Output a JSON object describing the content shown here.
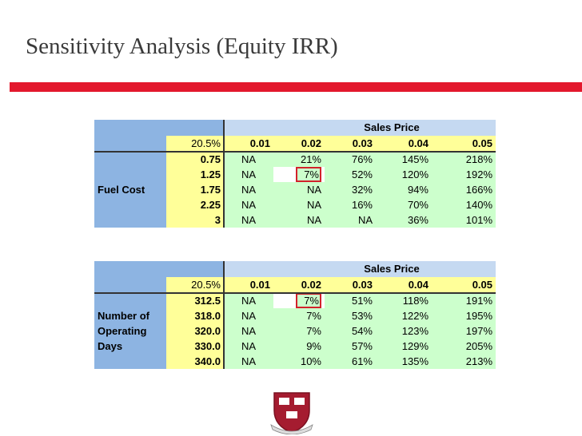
{
  "title": "Sensitivity Analysis (Equity IRR)",
  "tables": [
    {
      "header": "Sales Price",
      "corner": "20.5%",
      "columns": [
        "0.01",
        "0.02",
        "0.03",
        "0.04",
        "0.05"
      ],
      "row_label": [
        "Fuel Cost"
      ],
      "rows": [
        {
          "key": "0.75",
          "cells": [
            "NA",
            "21%",
            "76%",
            "145%",
            "218%"
          ]
        },
        {
          "key": "1.25",
          "cells": [
            "NA",
            "7%",
            "52%",
            "120%",
            "192%"
          ]
        },
        {
          "key": "1.75",
          "cells": [
            "NA",
            "NA",
            "32%",
            "94%",
            "166%"
          ]
        },
        {
          "key": "2.25",
          "cells": [
            "NA",
            "NA",
            "16%",
            "70%",
            "140%"
          ]
        },
        {
          "key": "3",
          "cells": [
            "NA",
            "NA",
            "NA",
            "36%",
            "101%"
          ]
        }
      ]
    },
    {
      "header": "Sales Price",
      "corner": "20.5%",
      "columns": [
        "0.01",
        "0.02",
        "0.03",
        "0.04",
        "0.05"
      ],
      "row_label": [
        "Number of",
        "Operating",
        "Days"
      ],
      "rows": [
        {
          "key": "312.5",
          "cells": [
            "NA",
            "7%",
            "51%",
            "118%",
            "191%"
          ]
        },
        {
          "key": "318.0",
          "cells": [
            "NA",
            "7%",
            "53%",
            "122%",
            "195%"
          ]
        },
        {
          "key": "320.0",
          "cells": [
            "NA",
            "7%",
            "54%",
            "123%",
            "197%"
          ]
        },
        {
          "key": "330.0",
          "cells": [
            "NA",
            "9%",
            "57%",
            "129%",
            "205%"
          ]
        },
        {
          "key": "340.0",
          "cells": [
            "NA",
            "10%",
            "61%",
            "135%",
            "213%"
          ]
        }
      ]
    }
  ]
}
